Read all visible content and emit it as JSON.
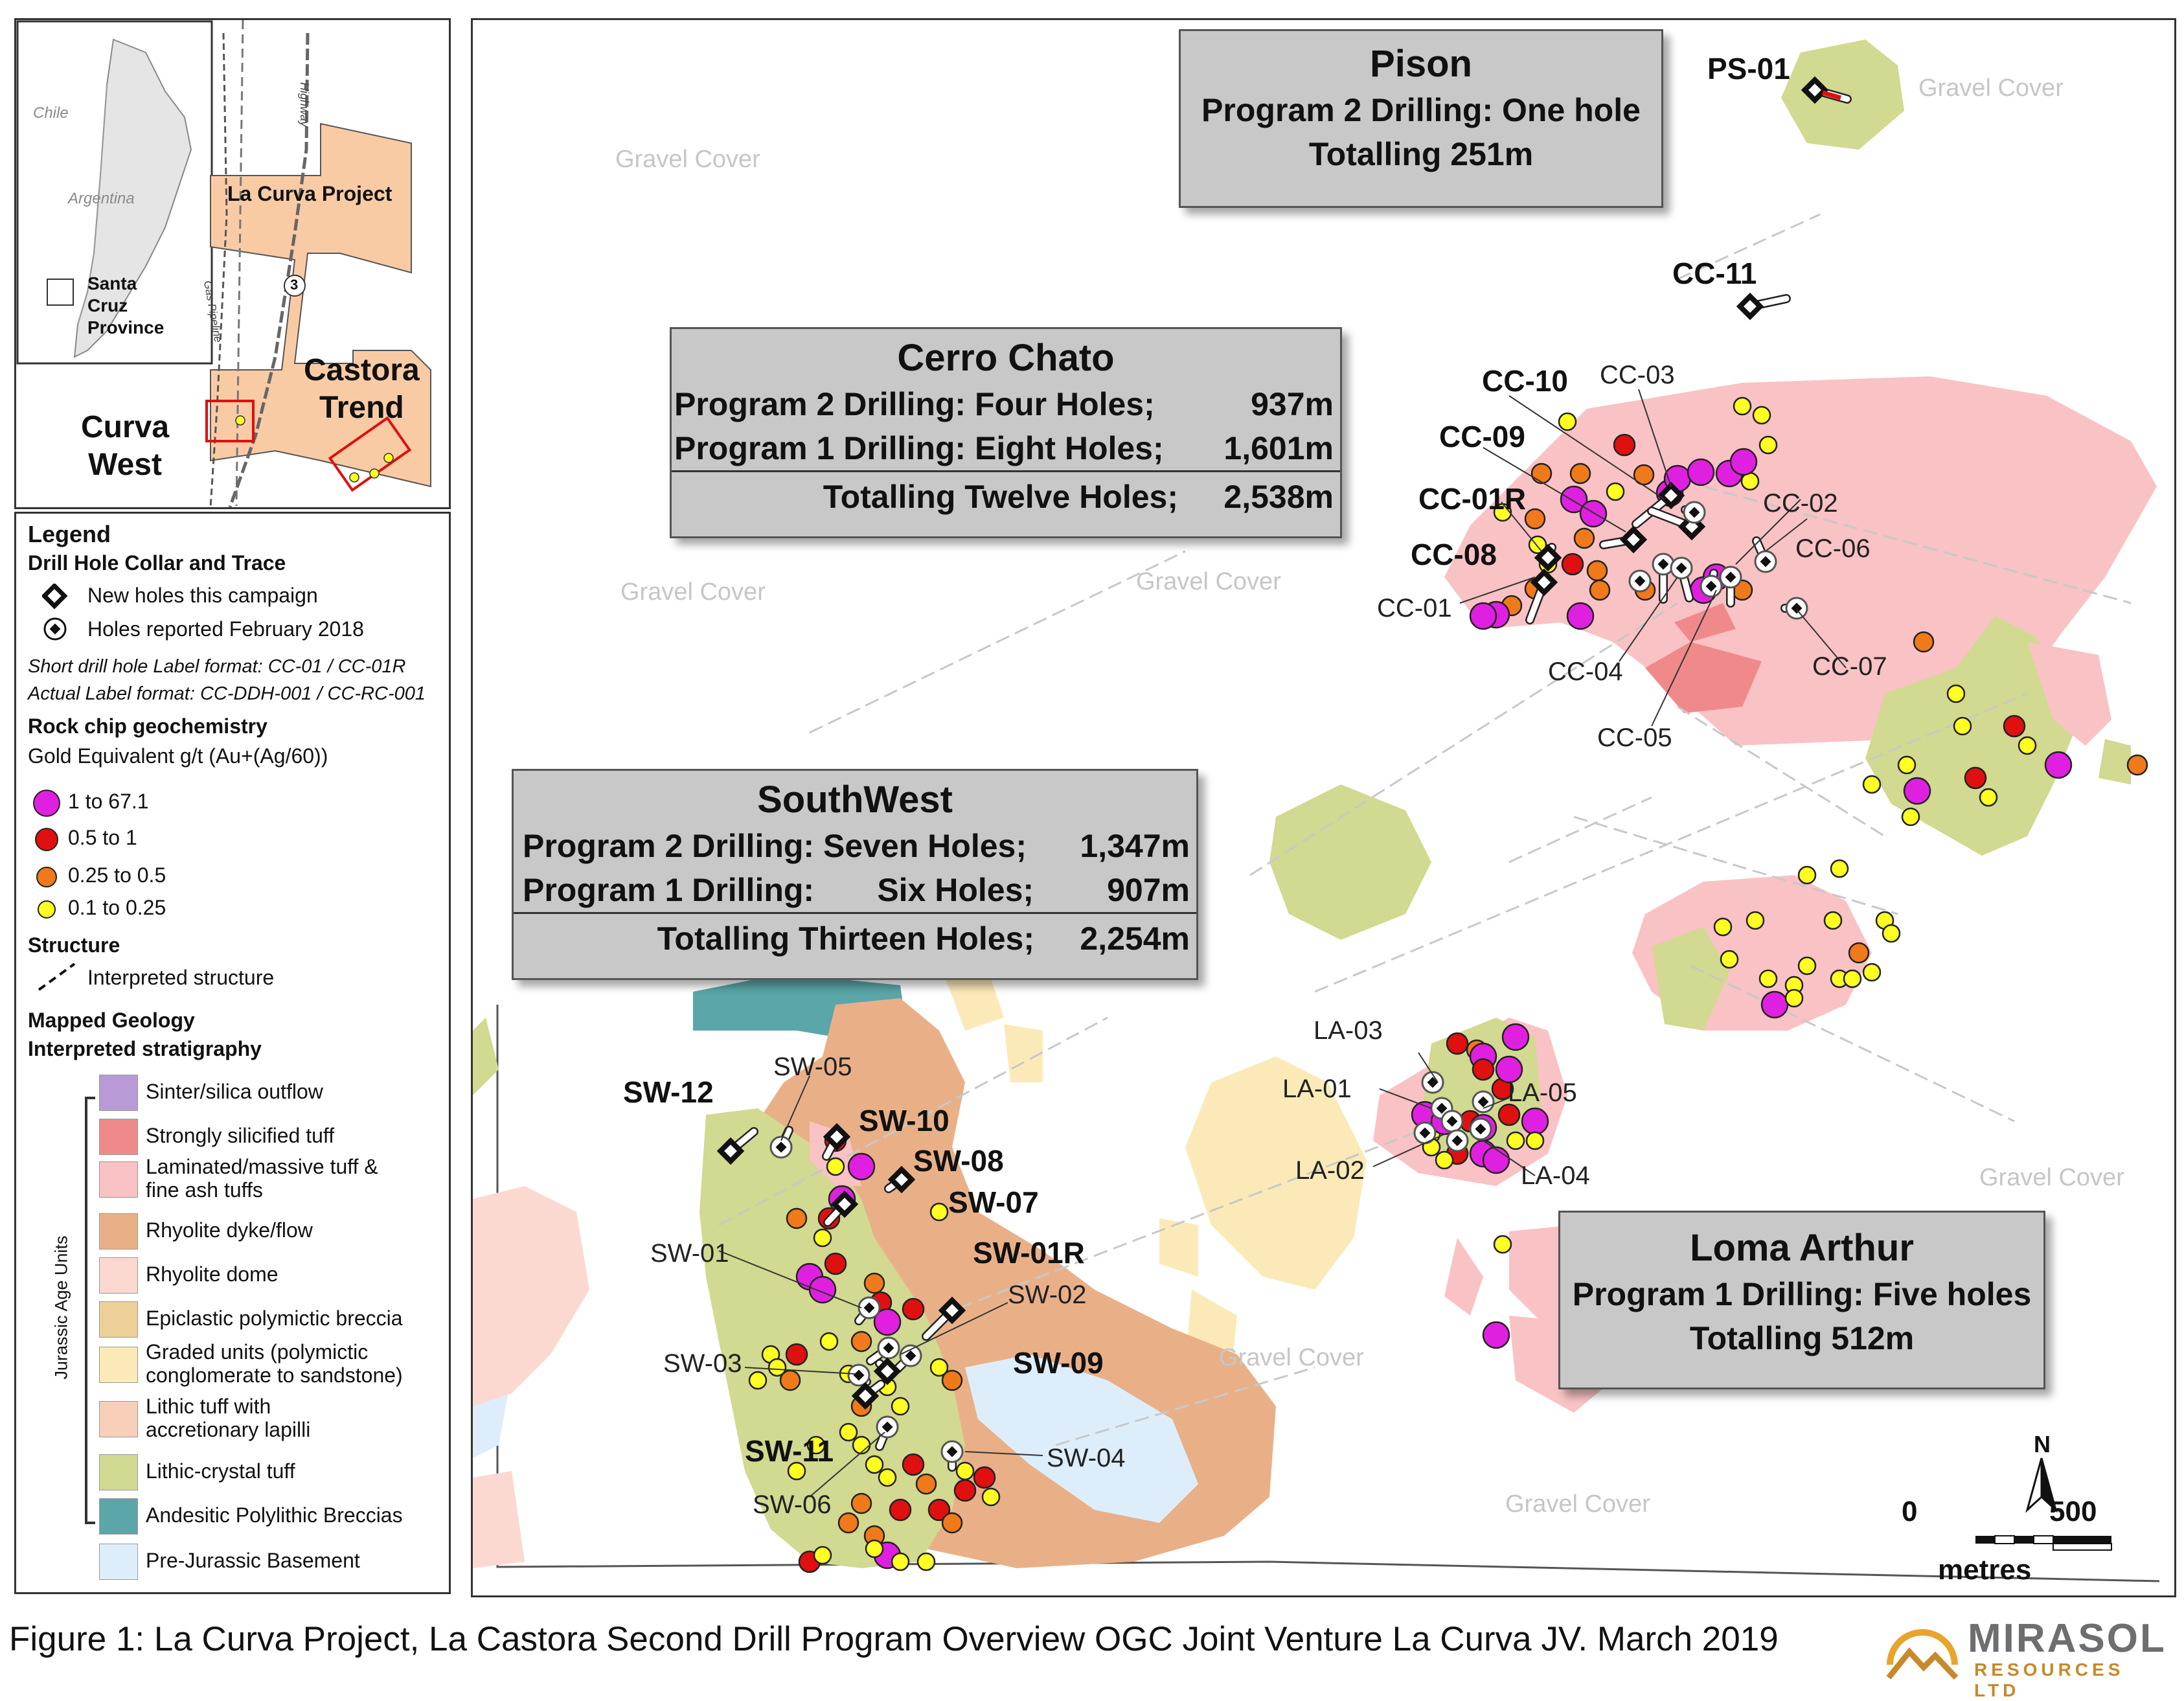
{
  "inset": {
    "countries": [
      "Chile",
      "Argentina"
    ],
    "province": [
      "Santa",
      "Cruz",
      "Province"
    ],
    "project_label": "La Curva Project",
    "highway_label": "Highway",
    "gas_label": "Gas Pipeline",
    "route_number": "3",
    "castora_trend": [
      "Castora",
      "Trend"
    ],
    "curva_west": [
      "Curva",
      "West"
    ]
  },
  "legend": {
    "title": "Legend",
    "collar_title": "Drill Hole Collar and Trace",
    "new_holes": "New holes this campaign",
    "reported_holes": "Holes reported February 2018",
    "short_label": "Short drill hole Label format: CC-01 / CC-01R",
    "actual_label": "Actual Label format: CC-DDH-001 / CC-RC-001",
    "rock_chip_title": "Rock chip geochemistry",
    "gold_eq": "Gold Equivalent g/t (Au+(Ag/60))",
    "grades": [
      {
        "label": "1 to 67.1",
        "color": "#e020e0"
      },
      {
        "label": "0.5 to 1",
        "color": "#e01010"
      },
      {
        "label": "0.25 to 0.5",
        "color": "#f07a1a"
      },
      {
        "label": "0.1 to 0.25",
        "color": "#ffff22"
      }
    ],
    "structure_title": "Structure",
    "interpreted_structure": "Interpreted structure",
    "geology_title": "Mapped Geology",
    "stratigraphy_title": "Interpreted stratigraphy",
    "jurassic_label": "Jurassic  Age Units",
    "units": [
      {
        "lines": [
          "Sinter/silica outflow"
        ],
        "color": "#b89ad6"
      },
      {
        "lines": [
          "Strongly silicified tuff"
        ],
        "color": "#f08a8a"
      },
      {
        "lines": [
          "Laminated/massive tuff &",
          "fine ash tuffs"
        ],
        "color": "#f9c2c4"
      },
      {
        "lines": [
          "Rhyolite dyke/flow"
        ],
        "color": "#e9b088"
      },
      {
        "lines": [
          "Rhyolite dome"
        ],
        "color": "#fbd9d0"
      },
      {
        "lines": [
          "Epiclastic polymictic breccia"
        ],
        "color": "#edcf9a"
      },
      {
        "lines": [
          "Graded units (polymictic",
          "conglomerate to sandstone)"
        ],
        "color": "#fbeab8"
      },
      {
        "lines": [
          "Lithic tuff with",
          "accretionary lapilli"
        ],
        "color": "#f8cfb8"
      },
      {
        "lines": [
          "Lithic-crystal tuff"
        ],
        "color": "#d2d990"
      },
      {
        "lines": [
          "Andesitic Polylithic Breccias"
        ],
        "color": "#5aa6a8"
      },
      {
        "lines": [
          "Pre-Jurassic Basement"
        ],
        "color": "#ddeefa"
      }
    ]
  },
  "boxes": {
    "pison": {
      "title": "Pison",
      "lines": [
        "Program 2 Drilling: One hole",
        "Totalling 251m"
      ]
    },
    "cerro_chato": {
      "title": "Cerro Chato",
      "rows": [
        {
          "left": "Program 2 Drilling:  Four Holes;",
          "right": "937m"
        },
        {
          "left": "Program 1 Drilling: Eight Holes;",
          "right": "1,601m"
        },
        {
          "left": "Totalling Twelve Holes;",
          "right": "2,538m"
        }
      ]
    },
    "southwest": {
      "title": "SouthWest",
      "rows": [
        {
          "left": "Program 2 Drilling: Seven Holes;",
          "right": "1,347m"
        },
        {
          "left": "Program 1 Drilling:       Six Holes;",
          "right": "907m"
        },
        {
          "left": "Totalling Thirteen Holes;",
          "right": "2,254m"
        }
      ]
    },
    "loma_arthur": {
      "title": "Loma Arthur",
      "lines": [
        "Program 1 Drilling: Five holes",
        "Totalling 512m"
      ]
    }
  },
  "map": {
    "gravel_cover": "Gravel Cover",
    "holes_new": [
      "PS-01",
      "CC-11",
      "CC-10",
      "CC-09",
      "CC-01R",
      "CC-08",
      "SW-12",
      "SW-10",
      "SW-08",
      "SW-07",
      "SW-01R",
      "SW-09",
      "SW-11"
    ],
    "holes_reported": [
      "CC-03",
      "CC-02",
      "CC-06",
      "CC-01",
      "CC-04",
      "CC-07",
      "CC-05",
      "LA-03",
      "LA-01",
      "LA-05",
      "LA-02",
      "LA-04",
      "SW-05",
      "SW-01",
      "SW-02",
      "SW-03",
      "SW-04",
      "SW-06"
    ],
    "north": "N",
    "scale_start": "0",
    "scale_end": "500",
    "scale_unit": "metres"
  },
  "caption": "Figure 1: La Curva Project, La Castora Second Drill Program Overview OGC Joint Venture La Curva JV. March 2019",
  "logo": {
    "name": "MIRASOL",
    "sub": "RESOURCES LTD"
  }
}
